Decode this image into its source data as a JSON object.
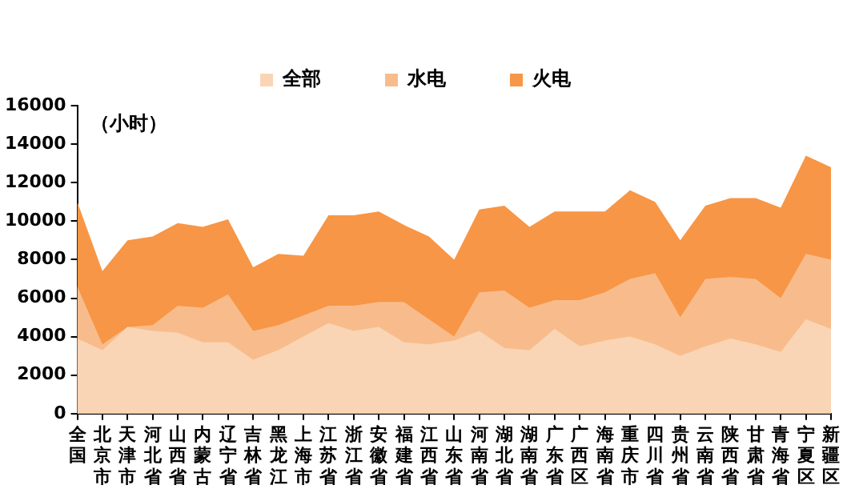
{
  "chart_data": {
    "type": "area",
    "annotations": [
      "（小时）"
    ],
    "categories": [
      "全国",
      "北京市",
      "天津市",
      "河北省",
      "山西省",
      "内蒙古",
      "辽宁省",
      "吉林省",
      "黑龙江",
      "上海市",
      "江苏省",
      "浙江省",
      "安徽省",
      "福建省",
      "江西省",
      "山东省",
      "河南省",
      "湖北省",
      "湖南省",
      "广东省",
      "广西区",
      "海南省",
      "重庆市",
      "四川省",
      "贵州省",
      "云南省",
      "陕西省",
      "甘肃省",
      "青海省",
      "宁夏区",
      "新疆区"
    ],
    "series": [
      {
        "name": "全部",
        "color": "#fad5b5",
        "values": [
          3900,
          3300,
          4500,
          4300,
          4200,
          3700,
          3700,
          2800,
          3300,
          4000,
          4700,
          4300,
          4500,
          3700,
          3600,
          3800,
          4300,
          3400,
          3300,
          4400,
          3500,
          3800,
          4000,
          3600,
          3000,
          3500,
          3900,
          3600,
          3200,
          4900,
          4400
        ]
      },
      {
        "name": "水电",
        "color": "#f8bc8c",
        "values": [
          6600,
          3600,
          4500,
          4600,
          5600,
          5500,
          6200,
          4300,
          4600,
          null,
          5600,
          5600,
          5800,
          5800,
          4900,
          4000,
          6300,
          6400,
          5500,
          5900,
          5900,
          6300,
          7000,
          7300,
          5000,
          7000,
          7100,
          7000,
          6000,
          8300,
          8000
        ]
      },
      {
        "name": "火电",
        "color": "#f79646",
        "values": [
          11000,
          7400,
          9000,
          9200,
          9900,
          9700,
          10100,
          7600,
          8300,
          8200,
          10300,
          10300,
          10500,
          9800,
          9200,
          8000,
          10600,
          10800,
          9700,
          10500,
          10500,
          10500,
          11600,
          11000,
          9000,
          10800,
          11200,
          11200,
          10700,
          13400,
          12800
        ]
      }
    ],
    "ylim": [
      0,
      16000
    ],
    "yticks": [
      0,
      2000,
      4000,
      6000,
      8000,
      10000,
      12000,
      14000,
      16000
    ],
    "grid": false,
    "legend": "top",
    "marker": "none"
  }
}
